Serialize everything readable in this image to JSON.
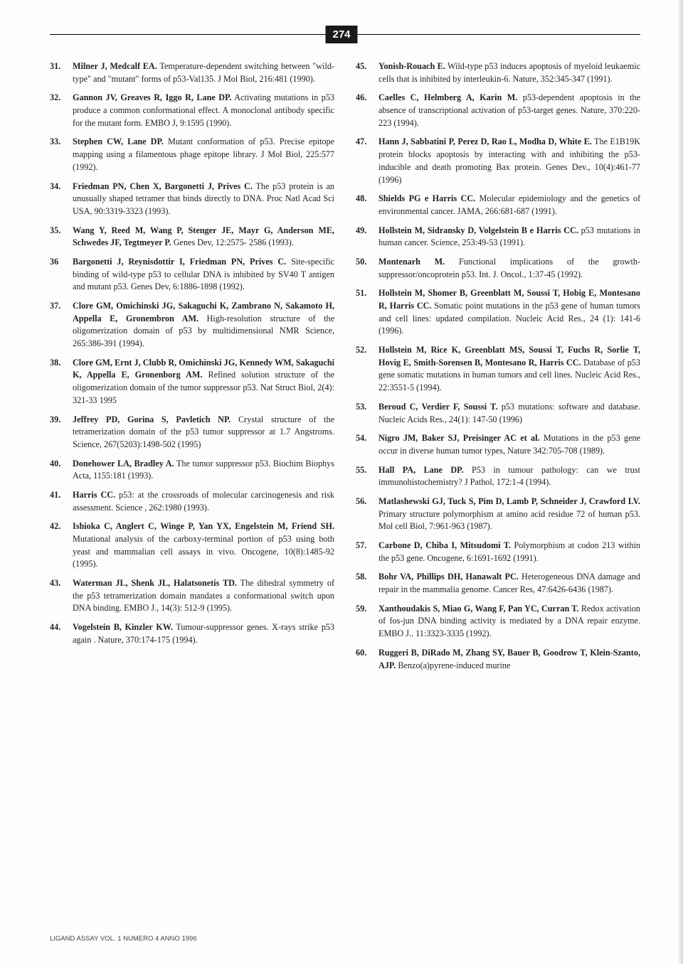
{
  "page_number": "274",
  "footer": "LIGAND ASSAY VOL. 1 NUMERO 4 ANNO 1996",
  "left_refs": [
    {
      "n": "31.",
      "authors": "Milner J, Medcalf EA.",
      "text": " Temperature-dependent switching between \"wild-type\" and \"mutant\" forms of p53-Val135. J Mol Biol, 216:481 (1990)."
    },
    {
      "n": "32.",
      "authors": "Gannon JV, Greaves R, Iggo R, Lane DP.",
      "text": " Activating mutations in p53 produce a common conformational effect. A monoclonal antibody specific for the mutant form. EMBO J, 9:1595 (1990)."
    },
    {
      "n": "33.",
      "authors": "Stephen CW, Lane DP.",
      "text": " Mutant conformation of p53. Precise epitope mapping using a filamentous phage epitope library. J Mol Biol, 225:577 (1992)."
    },
    {
      "n": "34.",
      "authors": "Friedman PN, Chen X, Bargonetti J, Prives C.",
      "text": " The p53 protein is an unusually shaped tetramer that binds directly to DNA. Proc Natl Acad Sci USA, 90:3319-3323 (1993)."
    },
    {
      "n": "35.",
      "authors": "Wang Y, Reed M, Wang P, Stenger JE, Mayr G, Anderson ME, Schwedes JF, Tegtmeyer P.",
      "text": " Genes Dev, 12:2575- 2586 (1993)."
    },
    {
      "n": "36",
      "authors": "Bargonetti J, Reynisdottir I, Friedman PN, Prives C.",
      "text": " Site-specific binding of wild-type p53 to cellular DNA is inhibited by SV40 T antigen and mutant p53. Genes Dev, 6:1886-1898 (1992)."
    },
    {
      "n": "37.",
      "authors": "Clore GM, Omichinski JG, Sakaguchi K, Zambrano N, Sakamoto H, Appella E, Gronembron AM.",
      "text": " High-resolution structure of the oligomerization domain of p53 by multidimensional NMR Science, 265:386-391 (1994)."
    },
    {
      "n": "38.",
      "authors": "Clore GM, Ernt J, Clubb R, Omichinski JG, Kennedy WM, Sakaguchi K, Appella E, Gronenborg AM.",
      "text": " Refined solution structure of the oligomerization domain of the tumor suppressor p53. Nat Struct Biol, 2(4): 321-33 1995"
    },
    {
      "n": "39.",
      "authors": "Jeffrey PD, Gorina S, Pavletich NP.",
      "text": " Crystal structure of the tetramerization domain of the p53 tumor suppressor at 1.7 Angstroms. Science, 267(5203):1498-502 (1995)"
    },
    {
      "n": "40.",
      "authors": "Donehower LA, Bradley A.",
      "text": " The tumor suppressor p53. Biochim Biophys Acta, 1155:181 (1993)."
    },
    {
      "n": "41.",
      "authors": "Harris CC.",
      "text": " p53: at the crossroads of molecular carcinogenesis and risk assessment. Science , 262:1980 (1993)."
    },
    {
      "n": "42.",
      "authors": "Ishioka C, Anglert C, Winge P, Yan YX, Engelstein M, Friend SH.",
      "text": " Mutational analysis of the carboxy-terminal portion of p53 using both yeast and mammalian cell assays in vivo. Oncogene, 10(8):1485-92 (1995)."
    },
    {
      "n": "43.",
      "authors": "Waterman JL, Shenk JL, Halatsonetis TD.",
      "text": " The dihedral symmetry of the p53 tetramerization domain mandates a conformational switch upon DNA binding. EMBO J., 14(3): 512-9 (1995)."
    },
    {
      "n": "44.",
      "authors": "Vogelstein B, Kinzler KW.",
      "text": " Tumour-suppressor genes. X-rays strike p53 again . Nature, 370:174-175 (1994)."
    }
  ],
  "right_refs": [
    {
      "n": "45.",
      "authors": "Yonish-Rouach E.",
      "text": " Wild-type p53 induces apoptosis of myeloid leukaemic cells that is inhibited by interleukin-6. Nature, 352:345-347 (1991)."
    },
    {
      "n": "46.",
      "authors": "Caelles C, Helmberg A, Karin M.",
      "text": " p53-dependent apoptosis in the absence of transcriptional activation of p53-target genes. Nature, 370:220-223 (1994)."
    },
    {
      "n": "47.",
      "authors": "Hann J, Sabbatini P, Perez D, Rao L, Modha D, White E.",
      "text": " The E1B19K protein blocks apoptosis by interacting with and inhibiting the p53-inducible and death promoting Bax protein. Genes Dev., 10(4):461-77 (1996)"
    },
    {
      "n": "48.",
      "authors": "Shields PG e Harris CC.",
      "text": " Molecular epidemiology and the genetics of environmental cancer. JAMA, 266:681-687 (1991)."
    },
    {
      "n": "49.",
      "authors": "Hollstein M, Sidransky D, Volgelstein B e Harris CC.",
      "text": " p53 mutations in human cancer. Science, 253:49-53 (1991)."
    },
    {
      "n": "50.",
      "authors": "Montenarh M.",
      "text": " Functional implications of the growth-suppressor/oncoprotein p53. Int. J. Oncol., 1:37-45 (1992)."
    },
    {
      "n": "51.",
      "authors": "Hollstein M, Shomer B, Greenblatt M, Soussi T, Hobig E, Montesano R, Harris CC.",
      "text": " Somatic point mutations in the p53 gene of human tumors and cell lines: updated compilation. Nucleic Acid Res., 24 (1): 141-6 (1996)."
    },
    {
      "n": "52.",
      "authors": "Hollstein M, Rice K, Greenblatt MS, Soussi T, Fuchs R, Sorlie T, Hovig E, Smith-Sorensen B, Montesano R, Harris CC.",
      "text": " Database of p53 gene somatic mutations in human tumors and cell lines. Nucleic Acid Res., 22:3551-5 (1994)."
    },
    {
      "n": "53.",
      "authors": "Beroud C, Verdier F, Soussi T.",
      "text": " p53 mutations: software and database. Nucleic Acids Res., 24(1): 147-50 (1996)"
    },
    {
      "n": "54.",
      "authors": "Nigro JM, Baker SJ, Preisinger AC et al.",
      "text": " Mutations in the p53 gene occur in diverse human tumor types, Nature 342:705-708 (1989)."
    },
    {
      "n": "55.",
      "authors": "Hall PA, Lane DP.",
      "text": " P53 in tumour pathology: can we trust immunohistochemistry? J Pathol, 172:1-4 (1994)."
    },
    {
      "n": "56.",
      "authors": "Matlashewski GJ, Tuck S, Pim D, Lamb P, Schneider J, Crawford LV.",
      "text": " Primary structure polymorphism at amino acid residue 72 of human p53. Mol cell Biol, 7:961-963 (1987)."
    },
    {
      "n": "57.",
      "authors": "Carbone D, Chiba I, Mitsudomi T.",
      "text": " Polymorphism at codon 213 within the p53 gene. Oncogene, 6:1691-1692 (1991)."
    },
    {
      "n": "58.",
      "authors": "Bohr VA, Phillips DH, Hanawalt PC.",
      "text": " Heterogeneous DNA damage and repair in the mammalia genome. Cancer Res, 47:6426-6436 (1987)."
    },
    {
      "n": "59.",
      "authors": "Xanthoudakis S, Miao G, Wang F, Pan YC, Curran T.",
      "text": " Redox activation of fos-jun DNA binding activity is mediated by a DNA repair enzyme. EMBO J.. 11:3323-3335 (1992)."
    },
    {
      "n": "60.",
      "authors": "Ruggeri B, DiRado M, Zhang SY, Bauer B, Goodrow T, Klein-Szanto, AJP.",
      "text": " Benzo(a)pyrene-induced murine"
    }
  ]
}
